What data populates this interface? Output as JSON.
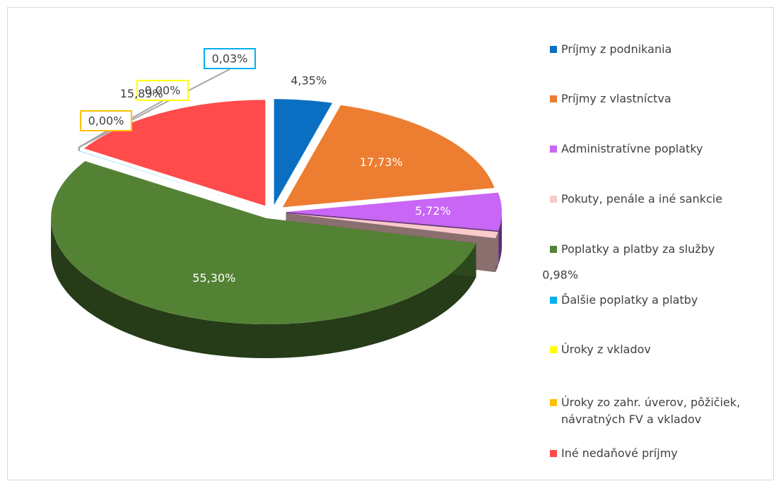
{
  "chart_data": {
    "type": "pie3d",
    "categories": [
      "Príjmy z podnikania",
      "Príjmy z vlastníctva",
      "Administratívne poplatky",
      "Pokuty, penále a iné sankcie",
      "Poplatky a platby za služby",
      "Ďalšie poplatky a platby",
      "Úroky z vkladov",
      "Úroky zo zahr. úverov, pôžičiek, návratných FV a vkladov",
      "Iné nedaňové príjmy"
    ],
    "values": [
      4.35,
      17.73,
      5.72,
      0.98,
      55.3,
      0.03,
      0.0,
      0.0,
      15.89
    ],
    "value_labels": [
      "4,35%",
      "17,73%",
      "5,72%",
      "0,98%",
      "55,30%",
      "0,03%",
      "0,00%",
      "0,00%",
      "15,89%"
    ],
    "colors": [
      "#0a6fc2",
      "#ed7d31",
      "#c966f5",
      "#fbcaca",
      "#548235",
      "#00b0f0",
      "#ffff00",
      "#ffc000",
      "#ff4b4b"
    ],
    "legend": "right"
  }
}
